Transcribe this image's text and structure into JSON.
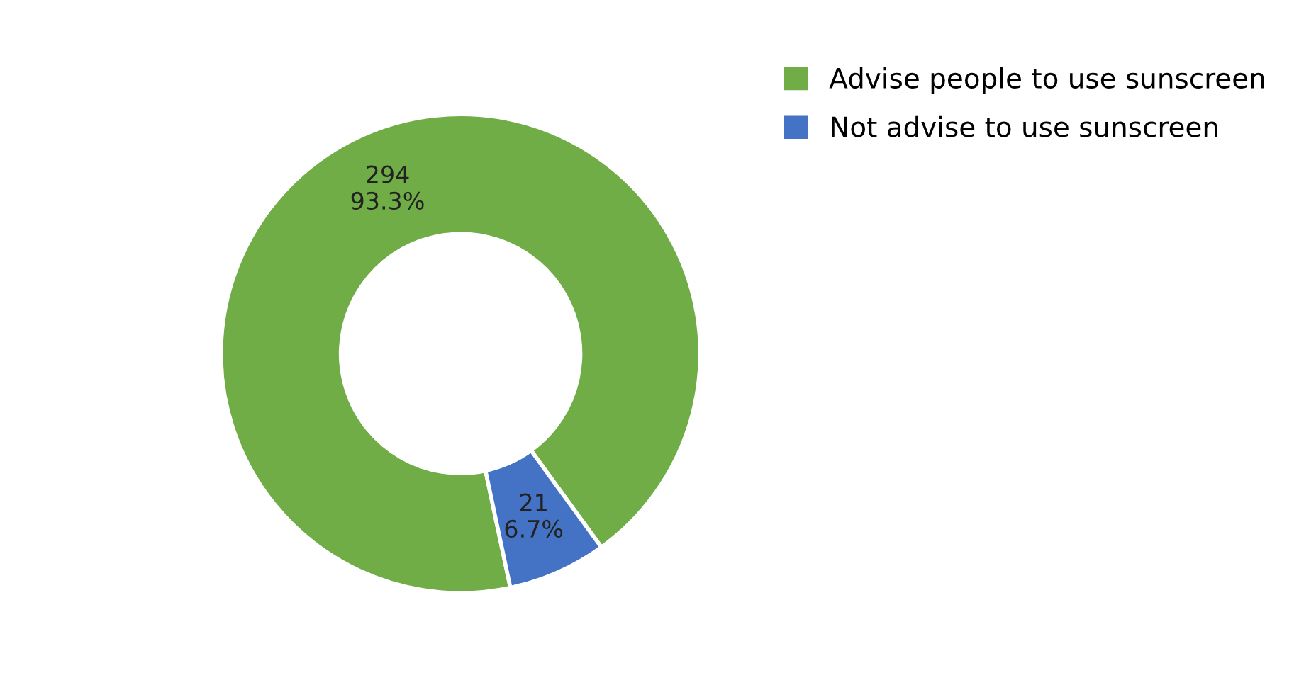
{
  "chart_data": {
    "type": "donut",
    "categories": [
      "Advise people to use sunscreen",
      "Not advise to use sunscreen"
    ],
    "values": [
      294,
      21
    ],
    "colors": [
      "#70ad47",
      "#4472c4"
    ],
    "value_labels": [
      "294\n93.3%",
      "21\n6.7%"
    ],
    "legend": "top right"
  }
}
